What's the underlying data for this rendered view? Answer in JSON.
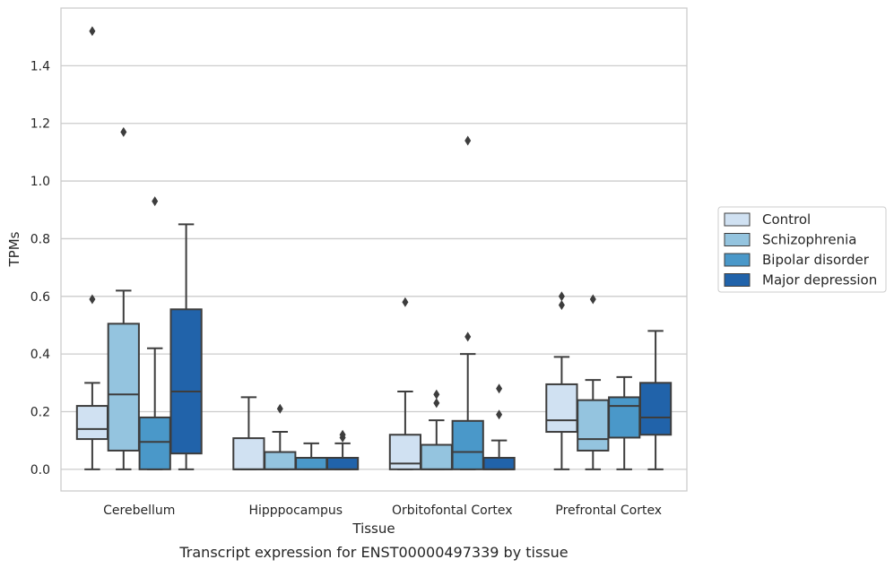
{
  "caption": "Transcript expression for ENST00000497339 by tissue",
  "chart_data": {
    "type": "box",
    "xlabel": "Tissue",
    "ylabel": "TPMs",
    "ylim": [
      -0.075,
      1.6
    ],
    "yticks": [
      0.0,
      0.2,
      0.4,
      0.6,
      0.8,
      1.0,
      1.2,
      1.4
    ],
    "ytick_labels": [
      "0.0",
      "0.2",
      "0.4",
      "0.6",
      "0.8",
      "1.0",
      "1.2",
      "1.4"
    ],
    "grid": "horizontal",
    "legend_position": "right",
    "categories": [
      "Cerebellum",
      "Hipppocampus",
      "Orbitofontal Cortex",
      "Prefrontal Cortex"
    ],
    "series": [
      {
        "name": "Control",
        "color": "#d0e1f2",
        "boxes": [
          {
            "whislo": 0.0,
            "q1": 0.105,
            "med": 0.14,
            "q3": 0.22,
            "whishi": 0.3,
            "fliers": [
              0.59,
              1.52
            ]
          },
          {
            "whislo": 0.0,
            "q1": 0.0,
            "med": 0.0,
            "q3": 0.108,
            "whishi": 0.25,
            "fliers": []
          },
          {
            "whislo": 0.0,
            "q1": 0.0,
            "med": 0.02,
            "q3": 0.12,
            "whishi": 0.27,
            "fliers": [
              0.58
            ]
          },
          {
            "whislo": 0.0,
            "q1": 0.13,
            "med": 0.17,
            "q3": 0.295,
            "whishi": 0.39,
            "fliers": [
              0.57,
              0.6
            ]
          }
        ]
      },
      {
        "name": "Schizophrenia",
        "color": "#94c4df",
        "boxes": [
          {
            "whislo": 0.0,
            "q1": 0.065,
            "med": 0.26,
            "q3": 0.505,
            "whishi": 0.62,
            "fliers": [
              1.17
            ]
          },
          {
            "whislo": 0.0,
            "q1": 0.0,
            "med": 0.0,
            "q3": 0.06,
            "whishi": 0.13,
            "fliers": [
              0.21
            ]
          },
          {
            "whislo": 0.0,
            "q1": 0.0,
            "med": 0.0,
            "q3": 0.085,
            "whishi": 0.17,
            "fliers": [
              0.23,
              0.26
            ]
          },
          {
            "whislo": 0.0,
            "q1": 0.065,
            "med": 0.105,
            "q3": 0.24,
            "whishi": 0.31,
            "fliers": [
              0.59
            ]
          }
        ]
      },
      {
        "name": "Bipolar disorder",
        "color": "#4a98c9",
        "boxes": [
          {
            "whislo": 0.0,
            "q1": 0.0,
            "med": 0.095,
            "q3": 0.18,
            "whishi": 0.42,
            "fliers": [
              0.93
            ]
          },
          {
            "whislo": 0.0,
            "q1": 0.0,
            "med": 0.0,
            "q3": 0.04,
            "whishi": 0.09,
            "fliers": []
          },
          {
            "whislo": 0.0,
            "q1": 0.0,
            "med": 0.06,
            "q3": 0.168,
            "whishi": 0.4,
            "fliers": [
              0.46,
              1.14
            ]
          },
          {
            "whislo": 0.0,
            "q1": 0.11,
            "med": 0.22,
            "q3": 0.25,
            "whishi": 0.32,
            "fliers": []
          }
        ]
      },
      {
        "name": "Major depression",
        "color": "#2163aa",
        "boxes": [
          {
            "whislo": 0.0,
            "q1": 0.055,
            "med": 0.27,
            "q3": 0.555,
            "whishi": 0.85,
            "fliers": []
          },
          {
            "whislo": 0.0,
            "q1": 0.0,
            "med": 0.0,
            "q3": 0.04,
            "whishi": 0.09,
            "fliers": [
              0.11,
              0.12
            ]
          },
          {
            "whislo": 0.0,
            "q1": 0.0,
            "med": 0.0,
            "q3": 0.04,
            "whishi": 0.1,
            "fliers": [
              0.19,
              0.28
            ]
          },
          {
            "whislo": 0.0,
            "q1": 0.12,
            "med": 0.18,
            "q3": 0.3,
            "whishi": 0.48,
            "fliers": []
          }
        ]
      }
    ]
  }
}
